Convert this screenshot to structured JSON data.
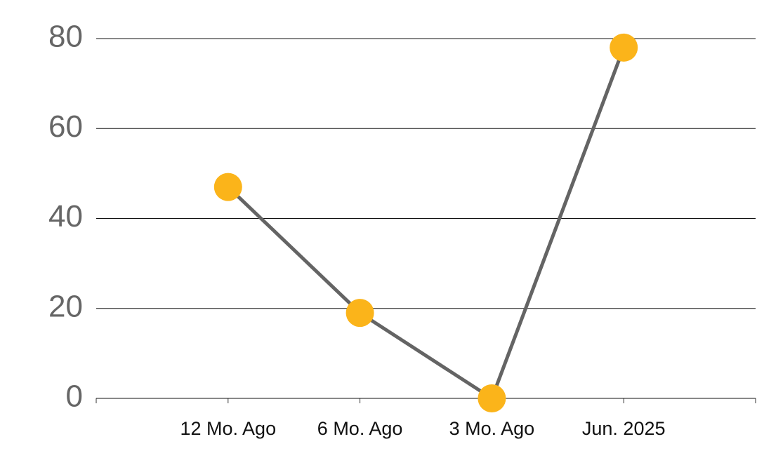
{
  "chart_data": {
    "type": "line",
    "categories": [
      "12 Mo. Ago",
      "6 Mo. Ago",
      "3 Mo. Ago",
      "Jun. 2025"
    ],
    "values": [
      47,
      19,
      0,
      78
    ],
    "color": "#646464",
    "marker_color": "#fbb41a",
    "ylim": [
      0,
      80
    ],
    "yticks": [
      0,
      20,
      40,
      60,
      80
    ],
    "grid": true
  }
}
